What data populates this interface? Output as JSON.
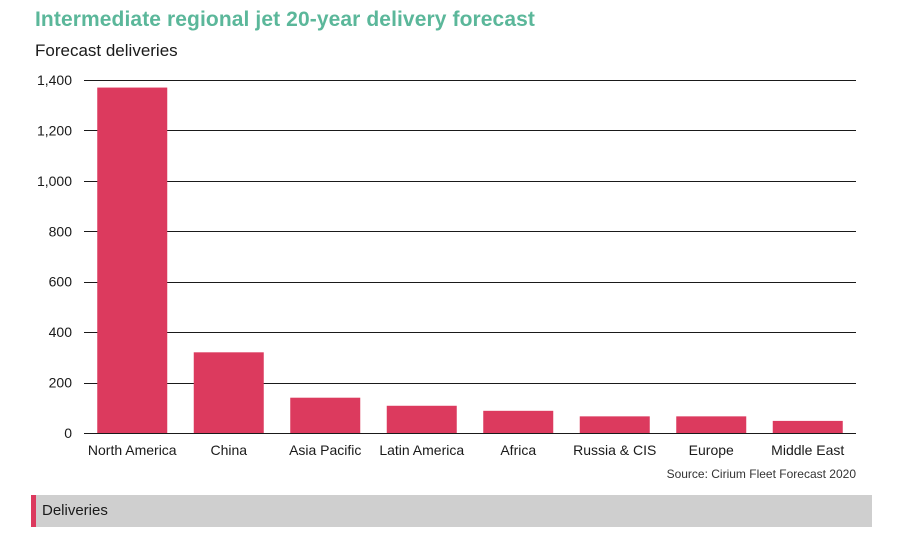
{
  "title": "Intermediate regional jet 20-year delivery forecast",
  "source": "Source: Cirium Fleet Forecast 2020",
  "colors": {
    "title": "#5bb79a",
    "bar": "#dc3a5e",
    "grid": "#1a1a1a",
    "legend_bg": "#cfcfcf"
  },
  "chart_data": {
    "type": "bar",
    "title": "Intermediate regional jet 20-year delivery forecast",
    "ylabel": "Forecast deliveries",
    "xlabel": "",
    "categories": [
      "North America",
      "China",
      "Asia Pacific",
      "Latin America",
      "Africa",
      "Russia & CIS",
      "Europe",
      "Middle East"
    ],
    "series": [
      {
        "name": "Deliveries",
        "values": [
          1370,
          320,
          140,
          108,
          88,
          66,
          66,
          48
        ]
      }
    ],
    "ylim": [
      0,
      1400
    ],
    "yticks": [
      0,
      200,
      400,
      600,
      800,
      1000,
      1200,
      1400
    ],
    "ytick_labels": [
      "0",
      "200",
      "400",
      "600",
      "800",
      "1,000",
      "1,200",
      "1,400"
    ],
    "grid": true,
    "legend_position": "bottom"
  }
}
